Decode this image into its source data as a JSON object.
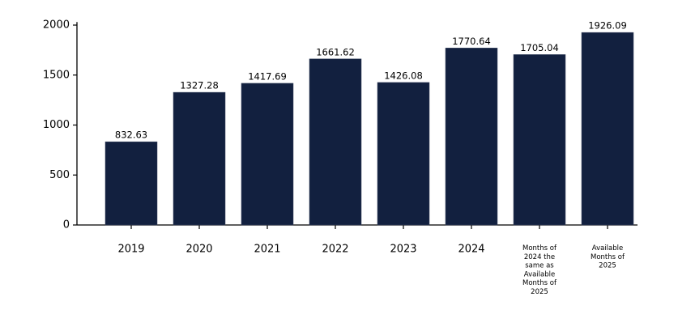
{
  "chart_data": {
    "type": "bar",
    "categories": [
      "2019",
      "2020",
      "2021",
      "2022",
      "2023",
      "2024",
      "Months of 2024 the same as Available Months of 2025",
      "Available Months of 2025"
    ],
    "values": [
      832.63,
      1327.28,
      1417.69,
      1661.62,
      1426.08,
      1770.64,
      1705.04,
      1926.09
    ],
    "color": "#12203f",
    "ylim": [
      0,
      2030
    ],
    "yticks": [
      0,
      500,
      1000,
      1500,
      2000
    ],
    "grid": false
  }
}
